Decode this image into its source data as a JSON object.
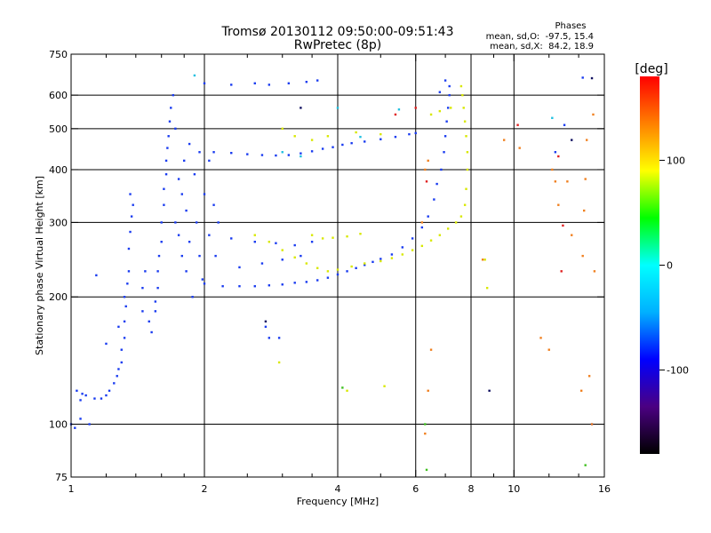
{
  "chart_data": {
    "type": "scatter",
    "title": "Tromsø 20130112 09:50:00-09:51:43",
    "subtitle": "RwPretec (8p)",
    "stats": {
      "heading": "Phases",
      "line_o": "mean, sd,O:  -97.5, 15.4",
      "line_x": "mean, sd,X:  84.2, 18.9"
    },
    "xlabel": "Frequency [MHz]",
    "ylabel": "Stationary phase Virtual Height [km]",
    "x_scale": "log",
    "y_scale": "log",
    "xlim": [
      1,
      16
    ],
    "ylim": [
      75,
      750
    ],
    "x_ticks": [
      1,
      2,
      4,
      6,
      8,
      10,
      16
    ],
    "x_tick_labels": [
      "1",
      "2",
      "4",
      "6",
      "8",
      "10",
      "16"
    ],
    "x_minor_ticks": [
      1.2,
      1.4,
      1.6,
      1.8,
      2.5,
      3,
      3.5,
      5,
      7,
      9,
      12,
      14
    ],
    "x_grid": [
      2,
      4,
      6,
      8,
      10
    ],
    "y_ticks": [
      75,
      100,
      200,
      300,
      400,
      500,
      600,
      750
    ],
    "y_tick_labels": [
      "75",
      "100",
      "200",
      "300",
      "400",
      "500",
      "600",
      "750"
    ],
    "y_grid": [
      100,
      200,
      300,
      400,
      500,
      600
    ],
    "grid": true,
    "colorbar": {
      "title": "[deg]",
      "range": [
        -180,
        180
      ],
      "ticks": [
        100,
        0,
        -100
      ],
      "tick_labels": [
        "100",
        "0",
        "-100"
      ],
      "colors": [
        "#000000",
        "#4b0082",
        "#0000ff",
        "#00b0ff",
        "#00ffff",
        "#00ff00",
        "#ffff00",
        "#ff8000",
        "#ff0000"
      ]
    },
    "series": [
      {
        "color": "#1a3cf0",
        "points": [
          [
            1.0,
            100
          ],
          [
            1.02,
            98
          ],
          [
            1.05,
            103
          ],
          [
            1.03,
            120
          ],
          [
            1.06,
            118
          ],
          [
            1.08,
            117
          ],
          [
            1.05,
            114
          ],
          [
            1.13,
            115
          ],
          [
            1.17,
            115
          ],
          [
            1.2,
            117
          ],
          [
            1.22,
            120
          ],
          [
            1.25,
            125
          ],
          [
            1.27,
            130
          ],
          [
            1.28,
            135
          ],
          [
            1.3,
            140
          ],
          [
            1.3,
            150
          ],
          [
            1.32,
            160
          ],
          [
            1.32,
            175
          ],
          [
            1.33,
            190
          ],
          [
            1.32,
            200
          ],
          [
            1.34,
            215
          ],
          [
            1.35,
            230
          ],
          [
            1.35,
            260
          ],
          [
            1.36,
            285
          ],
          [
            1.37,
            310
          ],
          [
            1.36,
            350
          ],
          [
            1.38,
            330
          ],
          [
            1.28,
            170
          ],
          [
            1.1,
            100
          ],
          [
            1.14,
            225
          ],
          [
            1.2,
            155
          ],
          [
            1.45,
            185
          ],
          [
            1.45,
            210
          ],
          [
            1.47,
            230
          ],
          [
            1.5,
            175
          ],
          [
            1.52,
            165
          ],
          [
            1.55,
            185
          ],
          [
            1.55,
            195
          ],
          [
            1.57,
            210
          ],
          [
            1.57,
            230
          ],
          [
            1.58,
            250
          ],
          [
            1.6,
            270
          ],
          [
            1.6,
            300
          ],
          [
            1.62,
            330
          ],
          [
            1.62,
            360
          ],
          [
            1.64,
            390
          ],
          [
            1.64,
            420
          ],
          [
            1.65,
            450
          ],
          [
            1.66,
            480
          ],
          [
            1.67,
            520
          ],
          [
            1.68,
            560
          ],
          [
            1.7,
            600
          ],
          [
            1.72,
            500
          ],
          [
            1.72,
            300
          ],
          [
            1.75,
            280
          ],
          [
            1.75,
            380
          ],
          [
            1.78,
            350
          ],
          [
            1.78,
            250
          ],
          [
            1.8,
            420
          ],
          [
            1.82,
            320
          ],
          [
            1.82,
            230
          ],
          [
            1.85,
            460
          ],
          [
            1.85,
            270
          ],
          [
            1.88,
            200
          ],
          [
            1.9,
            390
          ],
          [
            1.92,
            300
          ],
          [
            1.95,
            250
          ],
          [
            1.95,
            440
          ],
          [
            1.98,
            220
          ],
          [
            2.0,
            350
          ],
          [
            2.05,
            280
          ],
          [
            2.05,
            420
          ],
          [
            2.1,
            330
          ],
          [
            2.12,
            250
          ],
          [
            2.15,
            300
          ],
          [
            2.0,
            640
          ],
          [
            2.3,
            635
          ],
          [
            2.6,
            640
          ],
          [
            2.8,
            635
          ],
          [
            3.1,
            640
          ],
          [
            3.4,
            645
          ],
          [
            3.6,
            650
          ],
          [
            2.1,
            440
          ],
          [
            2.3,
            438
          ],
          [
            2.5,
            435
          ],
          [
            2.7,
            433
          ],
          [
            2.9,
            432
          ],
          [
            3.1,
            433
          ],
          [
            3.3,
            437
          ],
          [
            3.5,
            442
          ],
          [
            3.7,
            448
          ],
          [
            3.9,
            452
          ],
          [
            4.1,
            458
          ],
          [
            4.3,
            462
          ],
          [
            4.6,
            466
          ],
          [
            5.0,
            472
          ],
          [
            5.4,
            478
          ],
          [
            5.8,
            485
          ],
          [
            6.0,
            488
          ],
          [
            2.0,
            215
          ],
          [
            2.2,
            212
          ],
          [
            2.4,
            212
          ],
          [
            2.6,
            212
          ],
          [
            2.8,
            213
          ],
          [
            3.0,
            214
          ],
          [
            3.2,
            216
          ],
          [
            3.4,
            217
          ],
          [
            3.6,
            219
          ],
          [
            3.8,
            222
          ],
          [
            4.0,
            226
          ],
          [
            4.2,
            230
          ],
          [
            4.4,
            234
          ],
          [
            4.6,
            238
          ],
          [
            4.8,
            242
          ],
          [
            5.0,
            246
          ],
          [
            5.3,
            252
          ],
          [
            5.6,
            262
          ],
          [
            5.9,
            275
          ],
          [
            6.2,
            292
          ],
          [
            6.4,
            310
          ],
          [
            6.6,
            340
          ],
          [
            6.7,
            370
          ],
          [
            6.85,
            400
          ],
          [
            6.95,
            440
          ],
          [
            7.0,
            480
          ],
          [
            7.05,
            520
          ],
          [
            7.1,
            560
          ],
          [
            7.15,
            600
          ],
          [
            7.15,
            630
          ],
          [
            7.0,
            650
          ],
          [
            6.8,
            610
          ],
          [
            2.3,
            275
          ],
          [
            2.6,
            270
          ],
          [
            2.9,
            268
          ],
          [
            3.2,
            265
          ],
          [
            3.5,
            270
          ],
          [
            2.4,
            235
          ],
          [
            2.7,
            240
          ],
          [
            3.0,
            245
          ],
          [
            3.3,
            250
          ],
          [
            2.75,
            170
          ],
          [
            2.8,
            160
          ],
          [
            12.4,
            440
          ],
          [
            13.0,
            510
          ],
          [
            14.3,
            660
          ],
          [
            15.0,
            100
          ],
          [
            2.95,
            160
          ]
        ]
      },
      {
        "color": "#d8e800",
        "points": [
          [
            2.6,
            280
          ],
          [
            2.8,
            270
          ],
          [
            3.0,
            258
          ],
          [
            3.2,
            248
          ],
          [
            3.4,
            240
          ],
          [
            3.6,
            234
          ],
          [
            3.8,
            230
          ],
          [
            4.0,
            232
          ],
          [
            4.3,
            236
          ],
          [
            4.6,
            240
          ],
          [
            5.0,
            243
          ],
          [
            5.3,
            247
          ],
          [
            5.6,
            252
          ],
          [
            5.9,
            258
          ],
          [
            6.2,
            264
          ],
          [
            6.5,
            272
          ],
          [
            6.8,
            280
          ],
          [
            7.1,
            290
          ],
          [
            7.4,
            300
          ],
          [
            7.6,
            310
          ],
          [
            7.75,
            330
          ],
          [
            7.8,
            360
          ],
          [
            7.85,
            400
          ],
          [
            7.85,
            440
          ],
          [
            7.8,
            480
          ],
          [
            7.75,
            520
          ],
          [
            7.7,
            560
          ],
          [
            7.65,
            600
          ],
          [
            7.6,
            630
          ],
          [
            3.5,
            280
          ],
          [
            3.7,
            275
          ],
          [
            3.9,
            276
          ],
          [
            4.2,
            278
          ],
          [
            4.5,
            282
          ],
          [
            3.0,
            500
          ],
          [
            3.2,
            480
          ],
          [
            3.5,
            470
          ],
          [
            3.8,
            480
          ],
          [
            4.4,
            490
          ],
          [
            5.0,
            485
          ],
          [
            6.5,
            540
          ],
          [
            6.8,
            550
          ],
          [
            7.2,
            560
          ],
          [
            2.95,
            140
          ],
          [
            8.7,
            210
          ],
          [
            8.6,
            245
          ],
          [
            4.2,
            120
          ],
          [
            5.1,
            123
          ]
        ]
      },
      {
        "color": "#f08020",
        "points": [
          [
            6.3,
            400
          ],
          [
            6.4,
            420
          ],
          [
            6.2,
            300
          ],
          [
            6.5,
            150
          ],
          [
            6.4,
            120
          ],
          [
            6.3,
            95
          ],
          [
            8.5,
            245
          ],
          [
            11.5,
            160
          ],
          [
            12.0,
            150
          ],
          [
            12.4,
            375
          ],
          [
            12.6,
            330
          ],
          [
            13.2,
            375
          ],
          [
            13.5,
            280
          ],
          [
            14.3,
            250
          ],
          [
            14.4,
            320
          ],
          [
            14.5,
            380
          ],
          [
            14.6,
            470
          ],
          [
            15.0,
            100
          ],
          [
            15.1,
            540
          ],
          [
            14.8,
            130
          ],
          [
            15.2,
            230
          ],
          [
            14.2,
            120
          ],
          [
            10.3,
            450
          ],
          [
            12.2,
            400
          ],
          [
            9.5,
            470
          ]
        ]
      },
      {
        "color": "#e02020",
        "points": [
          [
            5.4,
            540
          ],
          [
            6.0,
            560
          ],
          [
            10.2,
            510
          ],
          [
            12.9,
            295
          ],
          [
            12.6,
            430
          ],
          [
            6.35,
            375
          ],
          [
            12.8,
            230
          ]
        ]
      },
      {
        "color": "#20c0e0",
        "points": [
          [
            3.0,
            440
          ],
          [
            3.3,
            430
          ],
          [
            4.0,
            560
          ],
          [
            1.9,
            668
          ],
          [
            12.2,
            530
          ],
          [
            5.5,
            555
          ],
          [
            4.5,
            478
          ]
        ]
      },
      {
        "color": "#40c020",
        "points": [
          [
            6.35,
            78
          ],
          [
            14.5,
            80
          ],
          [
            6.3,
            100
          ],
          [
            4.1,
            122
          ]
        ]
      },
      {
        "color": "#101060",
        "points": [
          [
            8.8,
            120
          ],
          [
            15.0,
            658
          ],
          [
            13.5,
            470
          ],
          [
            3.3,
            560
          ],
          [
            2.75,
            175
          ]
        ]
      }
    ]
  }
}
